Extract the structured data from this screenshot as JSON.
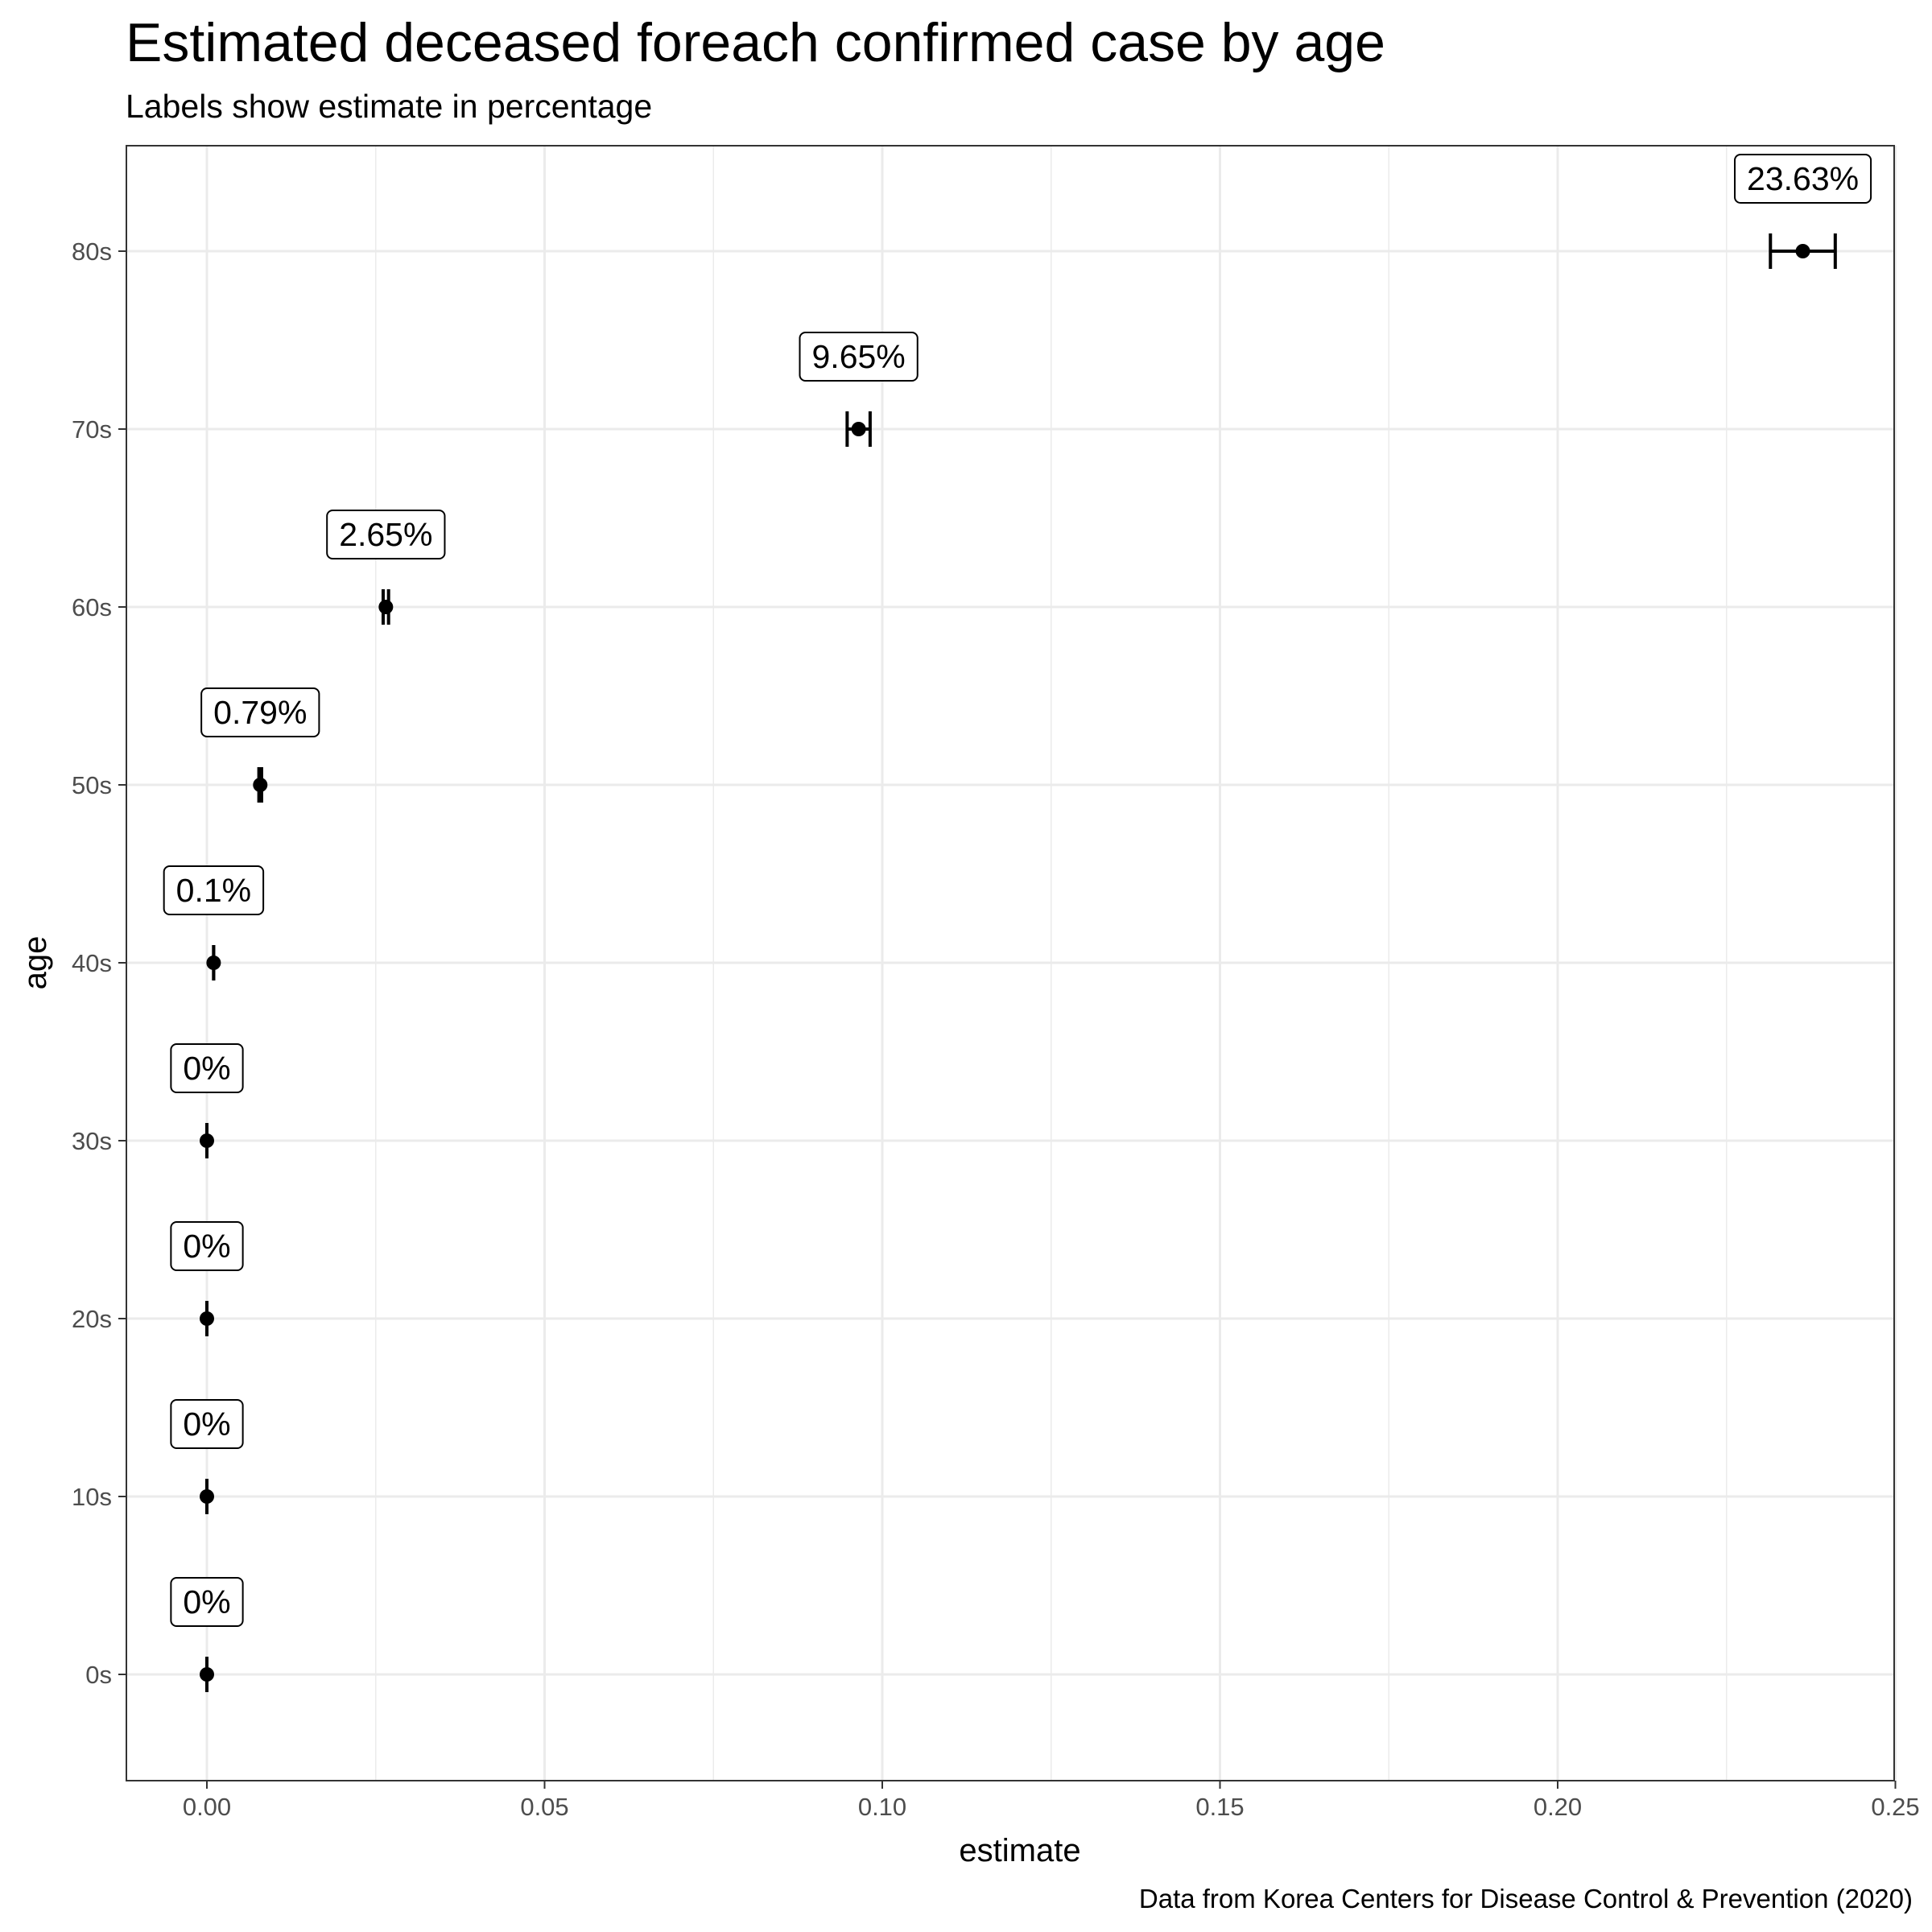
{
  "chart_data": {
    "type": "scatter",
    "title": "Estimated deceased foreach confirmed case by age",
    "subtitle": "Labels show estimate in percentage",
    "caption": "Data from Korea Centers for Disease Control & Prevention (2020)",
    "xlabel": "estimate",
    "ylabel": "age",
    "xlim": [
      -0.012,
      0.252
    ],
    "x_ticks": [
      0.0,
      0.05,
      0.1,
      0.15,
      0.2,
      0.25
    ],
    "x_tick_labels": [
      "0.00",
      "0.05",
      "0.10",
      "0.15",
      "0.20",
      "0.25"
    ],
    "categories": [
      "0s",
      "10s",
      "20s",
      "30s",
      "40s",
      "50s",
      "60s",
      "70s",
      "80s"
    ],
    "grid": true,
    "legend": "none",
    "points": [
      {
        "age": "0s",
        "estimate": 0.0,
        "lower": 0.0,
        "upper": 0.0,
        "label": "0%"
      },
      {
        "age": "10s",
        "estimate": 0.0,
        "lower": 0.0,
        "upper": 0.0,
        "label": "0%"
      },
      {
        "age": "20s",
        "estimate": 0.0,
        "lower": 0.0,
        "upper": 0.0,
        "label": "0%"
      },
      {
        "age": "30s",
        "estimate": 0.0,
        "lower": 0.0,
        "upper": 0.0,
        "label": "0%"
      },
      {
        "age": "40s",
        "estimate": 0.001,
        "lower": 0.001,
        "upper": 0.001,
        "label": "0.1%"
      },
      {
        "age": "50s",
        "estimate": 0.0079,
        "lower": 0.0077,
        "upper": 0.0081,
        "label": "0.79%"
      },
      {
        "age": "60s",
        "estimate": 0.0265,
        "lower": 0.0261,
        "upper": 0.0269,
        "label": "2.65%"
      },
      {
        "age": "70s",
        "estimate": 0.0965,
        "lower": 0.0948,
        "upper": 0.0982,
        "label": "9.65%"
      },
      {
        "age": "80s",
        "estimate": 0.2363,
        "lower": 0.2315,
        "upper": 0.2411,
        "label": "23.63%"
      }
    ]
  }
}
